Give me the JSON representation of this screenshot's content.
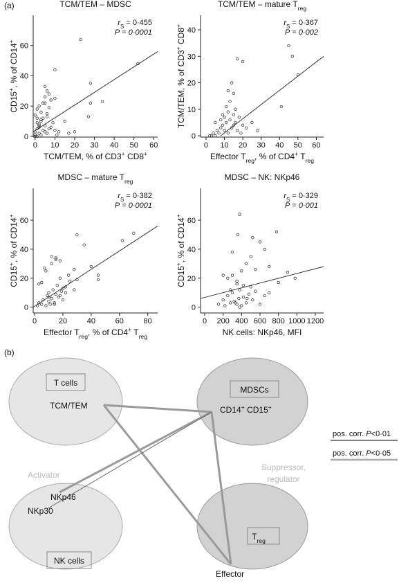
{
  "panel_a": "(a)",
  "chart_data": [
    {
      "type": "scatter",
      "title": [
        {
          "t": "TCM/TEM – MDSC"
        }
      ],
      "xlabel": [
        {
          "t": "TCM/TEM, % of CD3"
        },
        {
          "sup": "+"
        },
        {
          "t": " CD8"
        },
        {
          "sup": "+"
        }
      ],
      "ylabel": [
        {
          "t": "CD15"
        },
        {
          "sup": "+"
        },
        {
          "t": ", % of CD14"
        },
        {
          "sup": "+"
        }
      ],
      "annotations": [
        [
          {
            "i": "r"
          },
          {
            "sub": "S"
          },
          {
            "t": " = 0·455"
          }
        ],
        [
          {
            "i": "P"
          },
          {
            "t": " = "
          },
          {
            "i": "0·0001"
          }
        ]
      ],
      "x": [
        0,
        0,
        1,
        1,
        2,
        2,
        3,
        3,
        4,
        4,
        5,
        5,
        6,
        6,
        7,
        8,
        9,
        10,
        1,
        2,
        3,
        0,
        1,
        2,
        4,
        5,
        6,
        7,
        8,
        10,
        12,
        15,
        20,
        23,
        10,
        52,
        28,
        5,
        7,
        6,
        34,
        28,
        5,
        27,
        3,
        17,
        11,
        2,
        0,
        1
      ],
      "values": [
        1,
        3,
        0,
        5,
        2,
        8,
        1,
        10,
        4,
        12,
        3,
        7,
        2,
        15,
        5,
        6,
        9,
        4,
        18,
        20,
        11,
        14,
        9,
        6,
        22,
        33,
        30,
        28,
        24,
        25,
        3,
        10,
        3,
        64,
        44,
        48,
        35,
        22,
        19,
        13,
        23,
        22,
        26,
        13,
        16,
        2,
        1,
        7,
        0,
        12
      ],
      "fit_line": {
        "x": [
          -1,
          62
        ],
        "y": [
          3,
          56
        ]
      },
      "xlim": [
        -1,
        62
      ],
      "ylim": [
        -0.5,
        80
      ],
      "xticks": [
        0,
        10,
        20,
        30,
        40,
        50,
        60
      ],
      "yticks": [
        0,
        20,
        40,
        60
      ]
    },
    {
      "type": "scatter",
      "title": [
        {
          "t": "TCM/TEM – mature T"
        },
        {
          "sub": "reg"
        }
      ],
      "xlabel": [
        {
          "t": "Effector T"
        },
        {
          "sub": "reg"
        },
        {
          "t": ", % of CD4"
        },
        {
          "sup": "+"
        },
        {
          "t": " T"
        },
        {
          "sub": "reg"
        }
      ],
      "ylabel": [
        {
          "t": "TCM/TEM, % of CD3"
        },
        {
          "sup": "+"
        },
        {
          "t": " CD8"
        },
        {
          "sup": "+"
        }
      ],
      "annotations": [
        [
          {
            "i": "r"
          },
          {
            "sub": "S"
          },
          {
            "t": " = 0·367"
          }
        ],
        [
          {
            "i": "P"
          },
          {
            "t": " = "
          },
          {
            "i": "0·002"
          }
        ]
      ],
      "x": [
        2,
        4,
        5,
        6,
        7,
        8,
        8,
        9,
        10,
        10,
        11,
        12,
        12,
        13,
        14,
        15,
        15,
        16,
        17,
        18,
        19,
        20,
        22,
        25,
        28,
        3,
        5,
        9,
        11,
        13,
        16,
        45,
        47,
        50,
        41,
        17,
        20,
        14,
        12,
        15
      ],
      "values": [
        0,
        1,
        0,
        2,
        1,
        3,
        6,
        4,
        2,
        7,
        5,
        1,
        9,
        6,
        3,
        8,
        4,
        5,
        2,
        7,
        1,
        4,
        3,
        5,
        2,
        0,
        5,
        8,
        11,
        13,
        10,
        34,
        30,
        23,
        11,
        29,
        28,
        20,
        17,
        16
      ],
      "fit_line": {
        "x": [
          8,
          64
        ],
        "y": [
          0,
          30
        ]
      },
      "xlim": [
        -3,
        64
      ],
      "ylim": [
        -0.5,
        45.5
      ],
      "xticks": [
        0,
        10,
        20,
        30,
        40,
        50,
        60
      ],
      "yticks": [
        0,
        10,
        20,
        30,
        40
      ]
    },
    {
      "type": "scatter",
      "title": [
        {
          "t": "MDSC – mature T"
        },
        {
          "sub": "reg"
        }
      ],
      "xlabel": [
        {
          "t": "Effector T"
        },
        {
          "sub": "reg"
        },
        {
          "t": ", % of CD4"
        },
        {
          "sup": "+"
        },
        {
          "t": " T"
        },
        {
          "sub": "reg"
        }
      ],
      "ylabel": [
        {
          "t": "CD15"
        },
        {
          "sup": "+"
        },
        {
          "t": ", % of CD14"
        },
        {
          "sup": "+"
        }
      ],
      "annotations": [
        [
          {
            "i": "r"
          },
          {
            "sub": "S"
          },
          {
            "t": " = 0·382"
          }
        ],
        [
          {
            "i": "P"
          },
          {
            "t": " = "
          },
          {
            "i": "0·0001"
          }
        ]
      ],
      "x": [
        2,
        3,
        5,
        6,
        8,
        9,
        10,
        10,
        11,
        12,
        13,
        14,
        15,
        16,
        17,
        18,
        19,
        20,
        22,
        25,
        5,
        8,
        12,
        15,
        18,
        20,
        24,
        28,
        30,
        35,
        40,
        45,
        45,
        62,
        70,
        30,
        28,
        15,
        12,
        10,
        3,
        7,
        14,
        18,
        22
      ],
      "values": [
        1,
        3,
        2,
        5,
        1,
        8,
        4,
        10,
        2,
        6,
        12,
        3,
        9,
        15,
        7,
        20,
        11,
        5,
        14,
        18,
        17,
        25,
        30,
        34,
        32,
        13,
        22,
        26,
        50,
        43,
        28,
        22,
        19,
        46,
        51,
        19,
        12,
        33,
        35,
        7,
        16,
        27,
        2,
        8,
        10
      ],
      "fit_line": {
        "x": [
          -1,
          87
        ],
        "y": [
          0,
          56
        ]
      },
      "xlim": [
        -1,
        87
      ],
      "ylim": [
        -4,
        82
      ],
      "xticks": [
        0,
        20,
        40,
        60,
        80
      ],
      "yticks": [
        0,
        20,
        40,
        60
      ]
    },
    {
      "type": "scatter",
      "title": [
        {
          "t": "MDSC – NK: NKp46"
        }
      ],
      "xlabel": [
        {
          "t": "NK cells: NKp46, MFI"
        }
      ],
      "ylabel": [
        {
          "t": "CD15"
        },
        {
          "sup": "+"
        },
        {
          "t": ", % of CD14"
        },
        {
          "sup": "+"
        }
      ],
      "annotations": [
        [
          {
            "i": "r"
          },
          {
            "sub": "S"
          },
          {
            "t": " = 0·329"
          }
        ],
        [
          {
            "i": "P"
          },
          {
            "t": " = "
          },
          {
            "i": "0·001"
          }
        ]
      ],
      "x": [
        150,
        200,
        220,
        250,
        280,
        300,
        320,
        350,
        370,
        380,
        400,
        420,
        450,
        480,
        500,
        520,
        550,
        600,
        650,
        700,
        250,
        300,
        350,
        400,
        450,
        500,
        380,
        360,
        520,
        780,
        900,
        980,
        600,
        300,
        420,
        700,
        550,
        650,
        800,
        200,
        330,
        460,
        380,
        280,
        350
      ],
      "values": [
        2,
        5,
        1,
        8,
        3,
        10,
        4,
        2,
        6,
        12,
        1,
        7,
        3,
        9,
        14,
        5,
        11,
        2,
        8,
        10,
        20,
        22,
        18,
        25,
        30,
        35,
        64,
        50,
        48,
        52,
        24,
        20,
        45,
        38,
        15,
        28,
        26,
        40,
        17,
        22,
        3,
        6,
        0,
        12,
        16
      ],
      "fit_line": {
        "x": [
          -45,
          1290
        ],
        "y": [
          6,
          28
        ]
      },
      "xlim": [
        -45,
        1290
      ],
      "ylim": [
        -4,
        82
      ],
      "xticks": [
        0,
        200,
        400,
        600,
        800,
        1000,
        1200
      ],
      "yticks": [
        0,
        20,
        40,
        60
      ]
    }
  ],
  "diagram": {
    "label": "(b)",
    "boxes": [
      [
        {
          "t": "T cells"
        }
      ],
      [
        {
          "t": "MDSCs"
        }
      ],
      [
        {
          "t": "NK cells"
        }
      ],
      [
        {
          "t": "T"
        },
        {
          "sub": "reg"
        }
      ]
    ],
    "nodes": [
      [
        {
          "t": "TCM/TEM"
        }
      ],
      [
        {
          "t": "CD14"
        },
        {
          "sup": "+"
        },
        {
          "t": " CD15"
        },
        {
          "sup": "+"
        }
      ],
      [
        {
          "t": "NKp46"
        }
      ],
      [
        {
          "t": "NKp30"
        }
      ],
      [
        {
          "t": "Effector"
        }
      ]
    ],
    "regions": [
      [
        {
          "t": "Activator"
        }
      ],
      [
        {
          "t": "Suppressor,"
        }
      ],
      [
        {
          "t": "regulator"
        }
      ]
    ],
    "legend": [
      [
        {
          "t": "pos. corr. "
        },
        {
          "i": "P"
        },
        {
          "t": "<0·01"
        }
      ],
      [
        {
          "t": "pos. corr. "
        },
        {
          "i": "P"
        },
        {
          "t": "<0·05"
        }
      ]
    ]
  }
}
